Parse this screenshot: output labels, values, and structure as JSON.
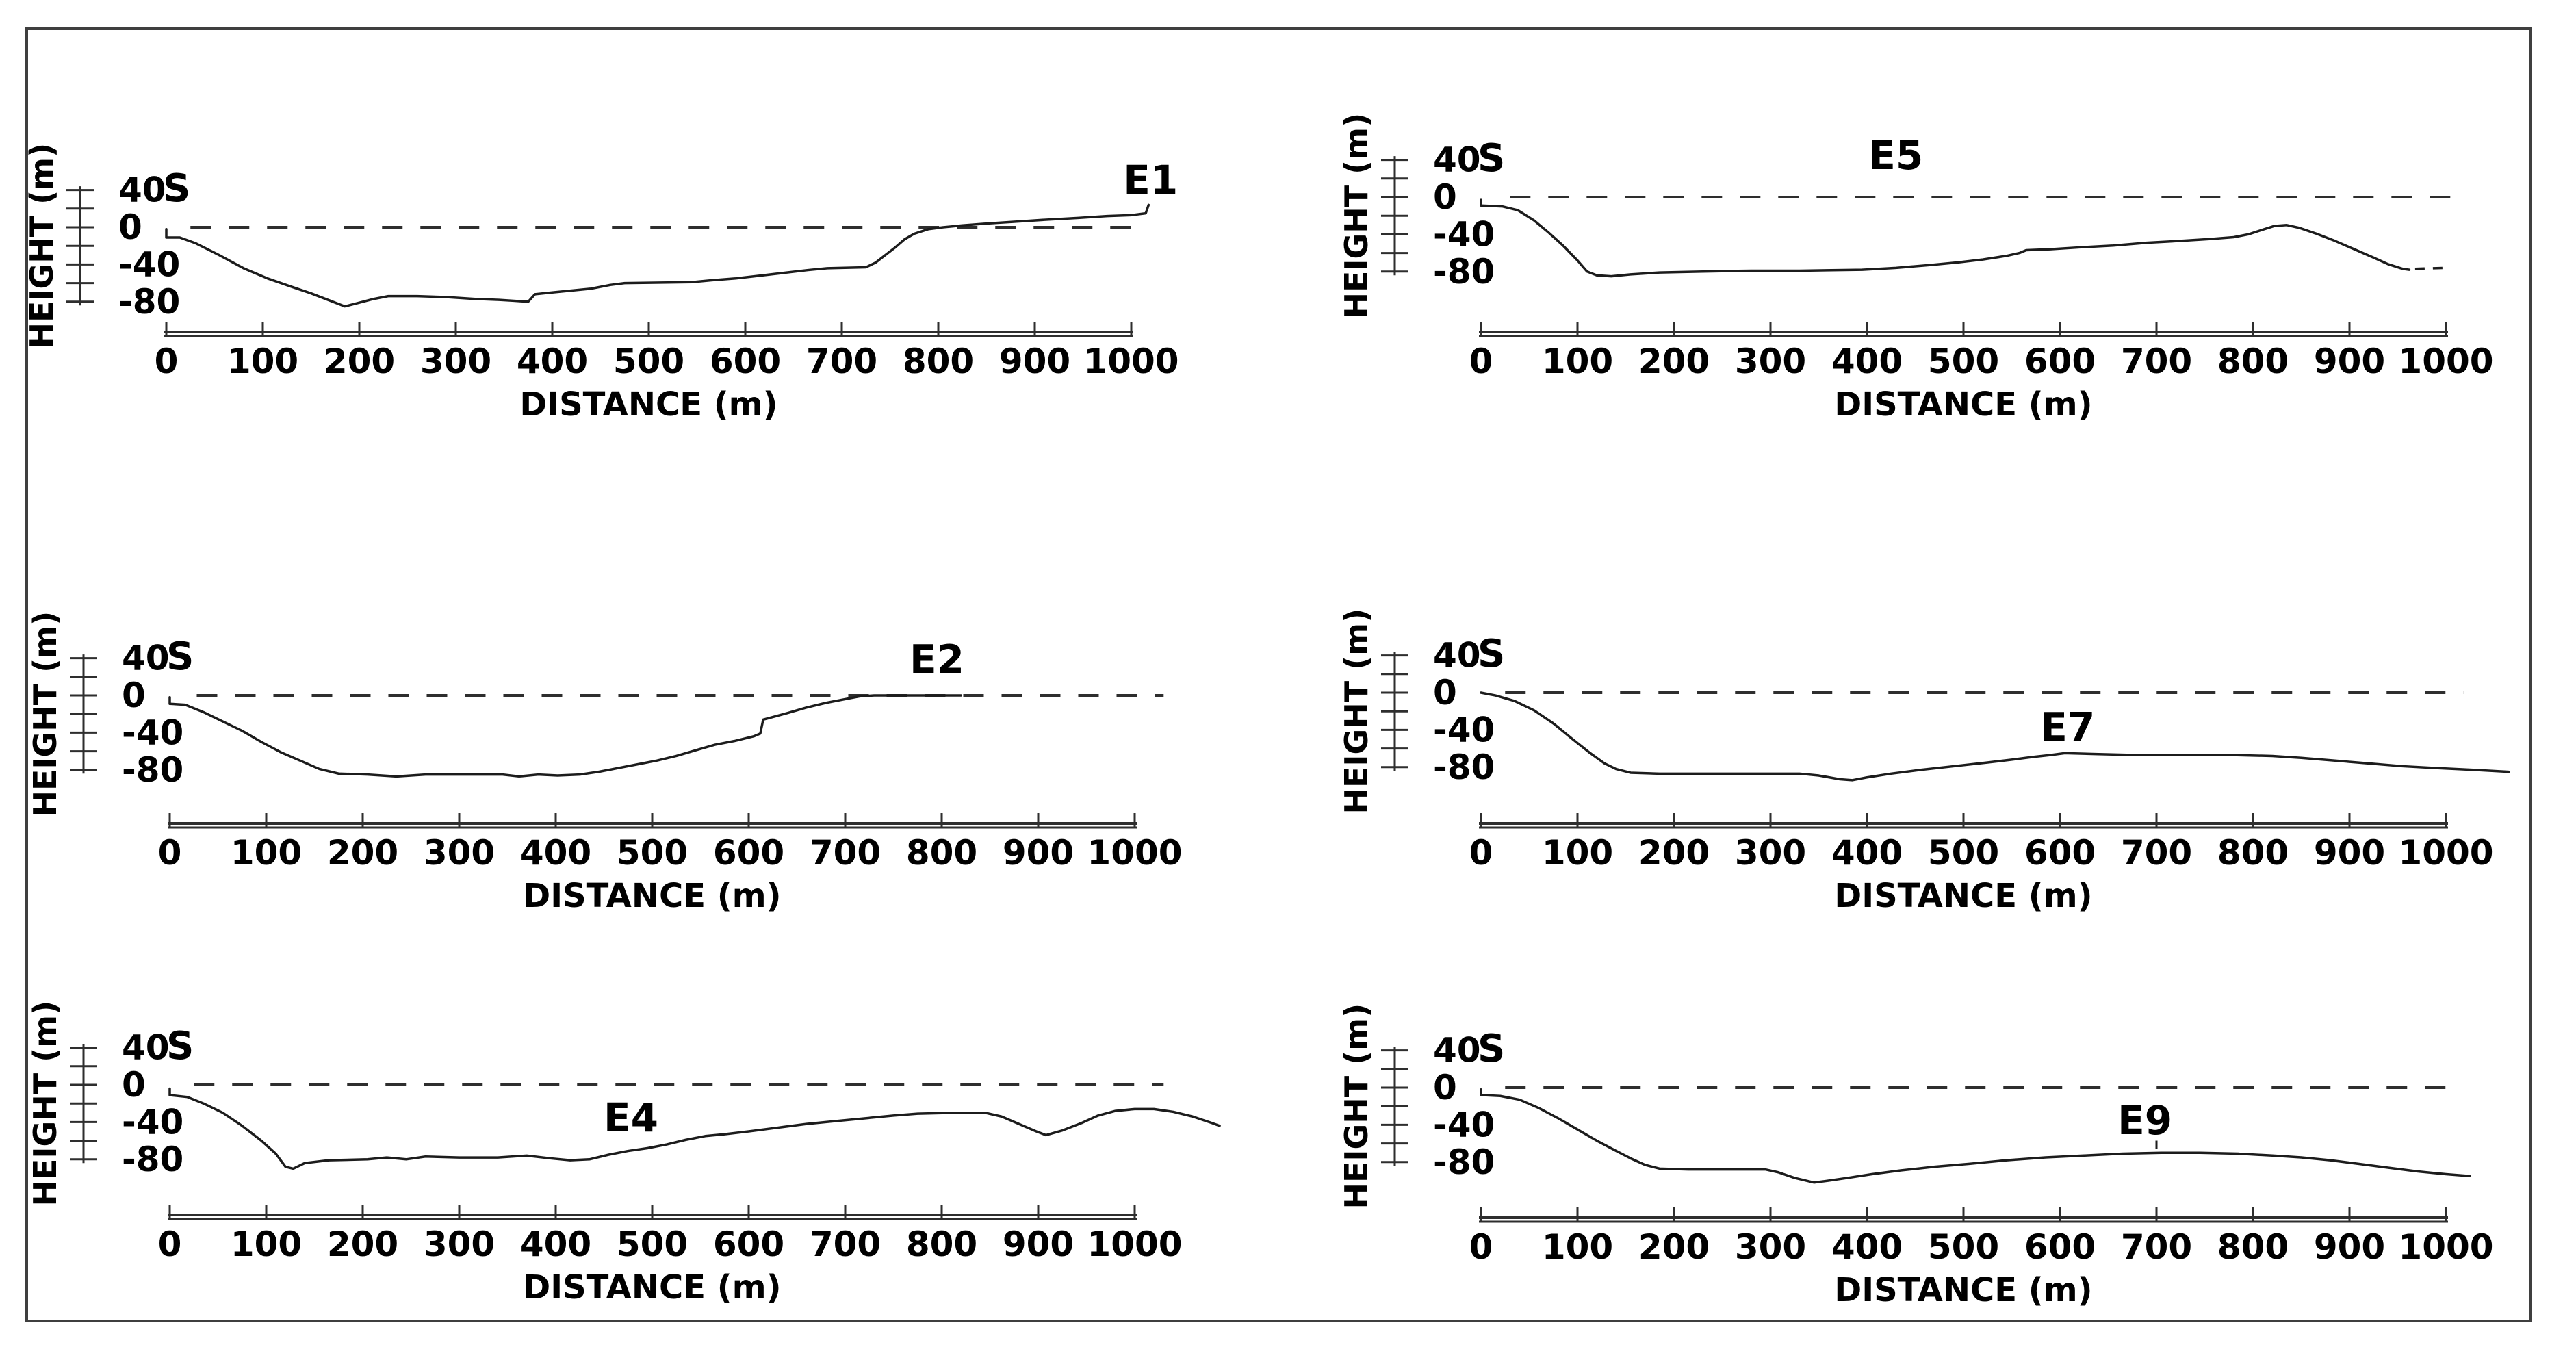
{
  "figure": {
    "background_color": "#ffffff",
    "border_color": "#3f3f3f",
    "line_color": "#1c1c1c",
    "axis_color": "#2e2e2e"
  },
  "chart_data": [
    {
      "id": "E1",
      "type": "line",
      "start_label": "S",
      "end_label": "E1",
      "xlabel": "DISTANCE (m)",
      "ylabel": "HEIGHT (m)",
      "x_ticks": [
        0,
        100,
        200,
        300,
        400,
        500,
        600,
        700,
        800,
        900,
        1000
      ],
      "y_ticks_labeled": [
        40,
        0,
        -40,
        -80
      ],
      "y_ticks_minor": [
        20,
        -20,
        -60
      ],
      "ylim": [
        -80,
        40
      ],
      "grid": "off",
      "zero_line": {
        "style": "dashed",
        "from_m": 25,
        "to_m": 1015
      },
      "start_label_pos_m": {
        "x": 0,
        "y": 28
      },
      "end_label_pos_m": {
        "x": 1020,
        "y": 36
      },
      "profile_m": [
        [
          0,
          -2
        ],
        [
          0,
          -11
        ],
        [
          14,
          -11
        ],
        [
          30,
          -17
        ],
        [
          55,
          -30
        ],
        [
          80,
          -44
        ],
        [
          105,
          -55
        ],
        [
          130,
          -64
        ],
        [
          150,
          -71
        ],
        [
          170,
          -79
        ],
        [
          185,
          -85
        ],
        [
          200,
          -81
        ],
        [
          215,
          -77
        ],
        [
          230,
          -74
        ],
        [
          260,
          -74
        ],
        [
          290,
          -75
        ],
        [
          320,
          -77
        ],
        [
          345,
          -78
        ],
        [
          360,
          -79
        ],
        [
          375,
          -80
        ],
        [
          382,
          -72
        ],
        [
          400,
          -70
        ],
        [
          420,
          -68
        ],
        [
          440,
          -66
        ],
        [
          460,
          -62
        ],
        [
          475,
          -60
        ],
        [
          545,
          -59
        ],
        [
          565,
          -57
        ],
        [
          590,
          -55
        ],
        [
          615,
          -52
        ],
        [
          640,
          -49
        ],
        [
          665,
          -46
        ],
        [
          685,
          -44
        ],
        [
          725,
          -43
        ],
        [
          735,
          -38
        ],
        [
          745,
          -30
        ],
        [
          755,
          -22
        ],
        [
          765,
          -13
        ],
        [
          775,
          -7
        ],
        [
          790,
          -2
        ],
        [
          805,
          0
        ],
        [
          825,
          2
        ],
        [
          850,
          4
        ],
        [
          880,
          6
        ],
        [
          910,
          8
        ],
        [
          945,
          10
        ],
        [
          975,
          12
        ],
        [
          1000,
          13
        ],
        [
          1015,
          15
        ],
        [
          1018,
          24
        ]
      ]
    },
    {
      "id": "E5",
      "type": "line",
      "start_label": "S",
      "end_label": "E5",
      "xlabel": "DISTANCE (m)",
      "ylabel": "HEIGHT (m)",
      "x_ticks": [
        0,
        100,
        200,
        300,
        400,
        500,
        600,
        700,
        800,
        900,
        1000
      ],
      "y_ticks_labeled": [
        40,
        0,
        -40,
        -80
      ],
      "y_ticks_minor": [
        20,
        -20,
        -60
      ],
      "ylim": [
        -80,
        40
      ],
      "grid": "off",
      "zero_line": {
        "style": "dashed",
        "from_m": 30,
        "to_m": 1010
      },
      "start_label_pos_m": {
        "x": 0,
        "y": 28
      },
      "end_label_pos_m": {
        "x": 430,
        "y": 30
      },
      "profile_m": [
        [
          0,
          -3
        ],
        [
          0,
          -9
        ],
        [
          22,
          -10
        ],
        [
          38,
          -14
        ],
        [
          55,
          -25
        ],
        [
          70,
          -38
        ],
        [
          85,
          -52
        ],
        [
          100,
          -68
        ],
        [
          110,
          -80
        ],
        [
          120,
          -84
        ],
        [
          135,
          -85
        ],
        [
          155,
          -83
        ],
        [
          185,
          -81
        ],
        [
          230,
          -80
        ],
        [
          280,
          -79
        ],
        [
          330,
          -79
        ],
        [
          395,
          -78
        ],
        [
          430,
          -76
        ],
        [
          465,
          -73
        ],
        [
          495,
          -70
        ],
        [
          520,
          -67
        ],
        [
          545,
          -63
        ],
        [
          558,
          -60
        ],
        [
          565,
          -57
        ],
        [
          590,
          -56
        ],
        [
          620,
          -54
        ],
        [
          655,
          -52
        ],
        [
          690,
          -49
        ],
        [
          725,
          -47
        ],
        [
          755,
          -45
        ],
        [
          780,
          -43
        ],
        [
          795,
          -40
        ],
        [
          810,
          -35
        ],
        [
          822,
          -31
        ],
        [
          835,
          -30
        ],
        [
          848,
          -33
        ],
        [
          865,
          -39
        ],
        [
          885,
          -47
        ],
        [
          905,
          -56
        ],
        [
          925,
          -65
        ],
        [
          940,
          -72
        ],
        [
          955,
          -77
        ],
        [
          962,
          -78
        ]
      ],
      "profile_tail_dashed_m": [
        [
          968,
          -77
        ],
        [
          1000,
          -76
        ]
      ]
    },
    {
      "id": "E2",
      "type": "line",
      "start_label": "S",
      "end_label": "E2",
      "xlabel": "DISTANCE (m)",
      "ylabel": "HEIGHT (m)",
      "x_ticks": [
        0,
        100,
        200,
        300,
        400,
        500,
        600,
        700,
        800,
        900,
        1000
      ],
      "y_ticks_labeled": [
        40,
        0,
        -40,
        -80
      ],
      "y_ticks_minor": [
        20,
        -20,
        -60
      ],
      "ylim": [
        -80,
        40
      ],
      "grid": "off",
      "zero_line": {
        "style": "dashed",
        "from_m": 28,
        "to_m": 1030
      },
      "start_label_pos_m": {
        "x": 0,
        "y": 28
      },
      "end_label_pos_m": {
        "x": 795,
        "y": 24
      },
      "profile_m": [
        [
          0,
          -2
        ],
        [
          0,
          -9
        ],
        [
          16,
          -10
        ],
        [
          35,
          -18
        ],
        [
          55,
          -28
        ],
        [
          75,
          -38
        ],
        [
          95,
          -50
        ],
        [
          115,
          -61
        ],
        [
          135,
          -70
        ],
        [
          155,
          -79
        ],
        [
          175,
          -84
        ],
        [
          205,
          -85
        ],
        [
          235,
          -87
        ],
        [
          265,
          -85
        ],
        [
          305,
          -85
        ],
        [
          345,
          -85
        ],
        [
          362,
          -87
        ],
        [
          382,
          -85
        ],
        [
          402,
          -86
        ],
        [
          425,
          -85
        ],
        [
          445,
          -82
        ],
        [
          465,
          -78
        ],
        [
          485,
          -74
        ],
        [
          505,
          -70
        ],
        [
          525,
          -65
        ],
        [
          545,
          -59
        ],
        [
          565,
          -53
        ],
        [
          585,
          -49
        ],
        [
          605,
          -44
        ],
        [
          612,
          -41
        ],
        [
          615,
          -26
        ],
        [
          622,
          -24
        ],
        [
          640,
          -19
        ],
        [
          660,
          -13
        ],
        [
          680,
          -8
        ],
        [
          700,
          -4
        ],
        [
          715,
          -1
        ],
        [
          730,
          0
        ],
        [
          820,
          0
        ]
      ]
    },
    {
      "id": "E7",
      "type": "line",
      "start_label": "S",
      "end_label": "E7",
      "xlabel": "DISTANCE (m)",
      "ylabel": "HEIGHT (m)",
      "x_ticks": [
        0,
        100,
        200,
        300,
        400,
        500,
        600,
        700,
        800,
        900,
        1000
      ],
      "y_ticks_labeled": [
        40,
        0,
        -40,
        -80
      ],
      "y_ticks_minor": [
        20,
        -20,
        -60
      ],
      "ylim": [
        -80,
        40
      ],
      "grid": "off",
      "zero_line": {
        "style": "dashed",
        "from_m": 25,
        "to_m": 1018
      },
      "start_label_pos_m": {
        "x": 0,
        "y": 28
      },
      "end_label_pos_m": {
        "x": 608,
        "y": -52
      },
      "profile_m": [
        [
          0,
          0
        ],
        [
          15,
          -3
        ],
        [
          35,
          -9
        ],
        [
          55,
          -19
        ],
        [
          75,
          -33
        ],
        [
          95,
          -50
        ],
        [
          112,
          -64
        ],
        [
          128,
          -76
        ],
        [
          140,
          -82
        ],
        [
          155,
          -86
        ],
        [
          185,
          -87
        ],
        [
          235,
          -87
        ],
        [
          285,
          -87
        ],
        [
          330,
          -87
        ],
        [
          350,
          -89
        ],
        [
          372,
          -93
        ],
        [
          385,
          -94
        ],
        [
          400,
          -91
        ],
        [
          425,
          -87
        ],
        [
          455,
          -83
        ],
        [
          490,
          -79
        ],
        [
          525,
          -75
        ],
        [
          550,
          -72
        ],
        [
          572,
          -69
        ],
        [
          590,
          -67
        ],
        [
          605,
          -65
        ],
        [
          640,
          -66
        ],
        [
          680,
          -67
        ],
        [
          730,
          -67
        ],
        [
          780,
          -67
        ],
        [
          820,
          -68
        ],
        [
          850,
          -70
        ],
        [
          885,
          -73
        ],
        [
          920,
          -76
        ],
        [
          955,
          -79
        ],
        [
          990,
          -81
        ],
        [
          1030,
          -83
        ],
        [
          1065,
          -85
        ]
      ]
    },
    {
      "id": "E4",
      "type": "line",
      "start_label": "S",
      "end_label": "E4",
      "xlabel": "DISTANCE (m)",
      "ylabel": "HEIGHT (m)",
      "x_ticks": [
        0,
        100,
        200,
        300,
        400,
        500,
        600,
        700,
        800,
        900,
        1000
      ],
      "y_ticks_labeled": [
        40,
        0,
        -40,
        -80
      ],
      "y_ticks_minor": [
        20,
        -20,
        -60
      ],
      "ylim": [
        -80,
        40
      ],
      "grid": "off",
      "zero_line": {
        "style": "dashed",
        "from_m": 25,
        "to_m": 1030
      },
      "start_label_pos_m": {
        "x": 0,
        "y": 28
      },
      "end_label_pos_m": {
        "x": 478,
        "y": -50
      },
      "profile_m": [
        [
          0,
          -4
        ],
        [
          0,
          -11
        ],
        [
          18,
          -13
        ],
        [
          35,
          -20
        ],
        [
          55,
          -30
        ],
        [
          75,
          -44
        ],
        [
          95,
          -60
        ],
        [
          110,
          -74
        ],
        [
          120,
          -88
        ],
        [
          128,
          -90
        ],
        [
          140,
          -84
        ],
        [
          165,
          -81
        ],
        [
          205,
          -80
        ],
        [
          225,
          -78
        ],
        [
          245,
          -80
        ],
        [
          265,
          -77
        ],
        [
          300,
          -78
        ],
        [
          340,
          -78
        ],
        [
          370,
          -76
        ],
        [
          395,
          -79
        ],
        [
          415,
          -81
        ],
        [
          435,
          -80
        ],
        [
          455,
          -75
        ],
        [
          475,
          -71
        ],
        [
          495,
          -68
        ],
        [
          515,
          -64
        ],
        [
          535,
          -59
        ],
        [
          555,
          -55
        ],
        [
          575,
          -53
        ],
        [
          600,
          -50
        ],
        [
          630,
          -46
        ],
        [
          660,
          -42
        ],
        [
          690,
          -39
        ],
        [
          720,
          -36
        ],
        [
          750,
          -33
        ],
        [
          775,
          -31
        ],
        [
          815,
          -30
        ],
        [
          845,
          -30
        ],
        [
          862,
          -34
        ],
        [
          880,
          -42
        ],
        [
          898,
          -50
        ],
        [
          908,
          -54
        ],
        [
          925,
          -49
        ],
        [
          945,
          -41
        ],
        [
          962,
          -33
        ],
        [
          980,
          -28
        ],
        [
          1000,
          -26
        ],
        [
          1020,
          -26
        ],
        [
          1040,
          -29
        ],
        [
          1060,
          -34
        ],
        [
          1080,
          -41
        ],
        [
          1088,
          -44
        ]
      ]
    },
    {
      "id": "E9",
      "type": "line",
      "start_label": "S",
      "end_label": "E9",
      "xlabel": "DISTANCE (m)",
      "ylabel": "HEIGHT (m)",
      "x_ticks": [
        0,
        100,
        200,
        300,
        400,
        500,
        600,
        700,
        800,
        900,
        1000
      ],
      "y_ticks_labeled": [
        40,
        0,
        -40,
        -80
      ],
      "y_ticks_minor": [
        20,
        -20,
        -60
      ],
      "ylim": [
        -80,
        40
      ],
      "grid": "off",
      "zero_line": {
        "style": "dashed",
        "from_m": 25,
        "to_m": 1017
      },
      "start_label_pos_m": {
        "x": 0,
        "y": 28
      },
      "end_label_pos_m": {
        "x": 688,
        "y": -50
      },
      "end_label_leader_m": [
        [
          700,
          -57
        ],
        [
          700,
          -66
        ]
      ],
      "profile_m": [
        [
          0,
          -2
        ],
        [
          0,
          -8
        ],
        [
          20,
          -9
        ],
        [
          40,
          -13
        ],
        [
          60,
          -22
        ],
        [
          80,
          -33
        ],
        [
          100,
          -45
        ],
        [
          120,
          -57
        ],
        [
          140,
          -68
        ],
        [
          155,
          -76
        ],
        [
          170,
          -83
        ],
        [
          185,
          -87
        ],
        [
          215,
          -88
        ],
        [
          255,
          -88
        ],
        [
          295,
          -88
        ],
        [
          308,
          -91
        ],
        [
          325,
          -97
        ],
        [
          345,
          -102
        ],
        [
          360,
          -100
        ],
        [
          380,
          -97
        ],
        [
          405,
          -93
        ],
        [
          435,
          -89
        ],
        [
          470,
          -85
        ],
        [
          505,
          -82
        ],
        [
          545,
          -78
        ],
        [
          585,
          -75
        ],
        [
          625,
          -73
        ],
        [
          665,
          -71
        ],
        [
          705,
          -70
        ],
        [
          745,
          -70
        ],
        [
          785,
          -71
        ],
        [
          820,
          -73
        ],
        [
          850,
          -75
        ],
        [
          880,
          -78
        ],
        [
          910,
          -82
        ],
        [
          940,
          -86
        ],
        [
          970,
          -90
        ],
        [
          1000,
          -93
        ],
        [
          1025,
          -95
        ]
      ]
    }
  ]
}
